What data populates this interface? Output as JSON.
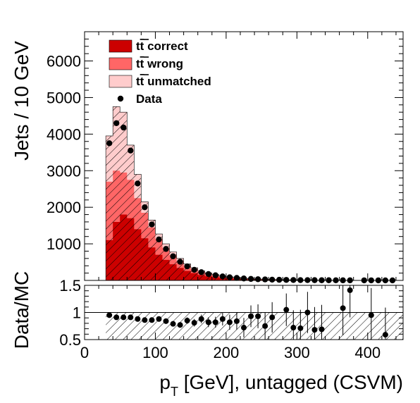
{
  "chart_data": [
    {
      "type": "stacked_histogram",
      "panel": "main",
      "ylabel": "Jets / 10 GeV",
      "xlim": [
        0,
        450
      ],
      "ylim": [
        0,
        6800
      ],
      "yticks": [
        "1000",
        "2000",
        "3000",
        "4000",
        "5000",
        "6000"
      ],
      "bin_width": 10,
      "bin_edges_start": 30,
      "colors": {
        "correct": "#cc0000",
        "wrong": "#ff6666",
        "unmatched": "#ffcccc",
        "data": "#000000"
      },
      "legend": {
        "placement": "top-left",
        "entries": [
          {
            "key": "correct",
            "prefix": "t",
            "bar": "t",
            "suffix": " correct"
          },
          {
            "key": "wrong",
            "prefix": "t",
            "bar": "t",
            "suffix": " wrong"
          },
          {
            "key": "unmatched",
            "prefix": "t",
            "bar": "t",
            "suffix": " unmatched"
          },
          {
            "key": "data",
            "label": "Data"
          }
        ]
      },
      "stack_correct": [
        1100,
        1600,
        1800,
        1700,
        1400,
        1150,
        900,
        700,
        560,
        440,
        340,
        260,
        200,
        150,
        115,
        90,
        70,
        55,
        45,
        35,
        28,
        22,
        18,
        14,
        11,
        9,
        7,
        6,
        5,
        4,
        3,
        3,
        2,
        2,
        2,
        1,
        1,
        1,
        1,
        1,
        1,
        1
      ],
      "stack_wrong_cumulative": [
        2700,
        3000,
        2950,
        2750,
        2250,
        1850,
        1450,
        1130,
        890,
        690,
        530,
        400,
        310,
        240,
        185,
        140,
        110,
        85,
        68,
        53,
        42,
        33,
        26,
        21,
        17,
        14,
        11,
        9,
        7,
        6,
        5,
        4,
        3,
        3,
        2,
        2,
        2,
        2,
        1,
        1,
        1,
        1
      ],
      "stack_total": [
        3950,
        4750,
        4600,
        3700,
        2900,
        2150,
        1650,
        1270,
        1000,
        780,
        600,
        450,
        345,
        265,
        205,
        160,
        125,
        98,
        78,
        62,
        49,
        39,
        31,
        25,
        20,
        16,
        13,
        11,
        9,
        7,
        6,
        5,
        4,
        4,
        3,
        3,
        2,
        2,
        2,
        2,
        1,
        1
      ],
      "data_x": [
        35,
        45,
        55,
        65,
        75,
        85,
        95,
        105,
        115,
        125,
        135,
        145,
        155,
        165,
        175,
        185,
        195,
        205,
        215,
        225,
        235,
        245,
        255,
        265,
        275,
        285,
        295,
        305,
        315,
        325,
        335,
        345,
        355,
        365,
        375,
        395,
        405,
        415,
        425,
        435
      ],
      "data_y": [
        3750,
        4300,
        4180,
        3550,
        2650,
        2000,
        1530,
        1120,
        860,
        660,
        510,
        385,
        290,
        225,
        175,
        140,
        110,
        85,
        68,
        53,
        41,
        33,
        27,
        21,
        17,
        14,
        11,
        9,
        8,
        7,
        5,
        5,
        4,
        3,
        3,
        2,
        2,
        2,
        1,
        1
      ]
    },
    {
      "type": "scatter",
      "panel": "ratio",
      "xlabel_parts": {
        "main": "p",
        "sub": "T",
        "rest": " [GeV], untagged (CSVM)"
      },
      "ylabel": "Data/MC",
      "xlim": [
        0,
        450
      ],
      "ylim": [
        0.5,
        1.5
      ],
      "xticks": [
        "0",
        "100",
        "200",
        "300",
        "400"
      ],
      "yticks": [
        "0.5",
        "1",
        "1.5"
      ],
      "ratio_x": [
        35,
        45,
        55,
        65,
        75,
        85,
        95,
        105,
        115,
        125,
        135,
        145,
        155,
        165,
        175,
        185,
        195,
        205,
        215,
        225,
        235,
        245,
        255,
        265,
        285,
        295,
        305,
        315,
        325,
        335,
        365,
        375,
        405,
        425
      ],
      "ratio_y": [
        0.95,
        0.91,
        0.91,
        0.91,
        0.88,
        0.86,
        0.86,
        0.88,
        0.84,
        0.79,
        0.77,
        0.85,
        0.81,
        0.88,
        0.82,
        0.82,
        0.88,
        0.82,
        0.84,
        0.72,
        0.93,
        0.93,
        0.75,
        0.91,
        1.05,
        0.72,
        0.71,
        1.0,
        0.68,
        0.69,
        1.08,
        1.41,
        0.95,
        0.59
      ],
      "ratio_err": [
        0.02,
        0.02,
        0.02,
        0.02,
        0.02,
        0.03,
        0.03,
        0.03,
        0.04,
        0.04,
        0.05,
        0.06,
        0.07,
        0.08,
        0.09,
        0.1,
        0.12,
        0.14,
        0.16,
        0.18,
        0.2,
        0.22,
        0.25,
        0.28,
        0.3,
        0.32,
        0.34,
        0.38,
        0.42,
        0.45,
        0.5,
        0.5,
        0.5,
        0.5
      ]
    }
  ]
}
